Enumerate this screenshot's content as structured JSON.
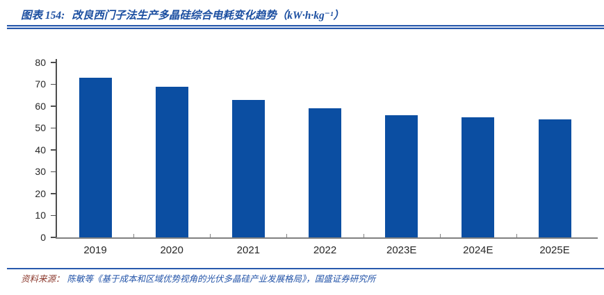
{
  "header": {
    "tag": "图表 154:",
    "title": "改良西门子法生产多晶硅综合电耗变化趋势（kW·h·kg⁻¹）"
  },
  "chart_data": {
    "type": "bar",
    "title": "改良西门子法生产多晶硅综合电耗变化趋势",
    "unit": "kW·h·kg⁻¹",
    "categories": [
      "2019",
      "2020",
      "2021",
      "2022",
      "2023E",
      "2024E",
      "2025E"
    ],
    "values": [
      73,
      69,
      63,
      59,
      56,
      55,
      54
    ],
    "ylim": [
      0,
      80
    ],
    "yticks": [
      0,
      10,
      20,
      30,
      40,
      50,
      60,
      70,
      80
    ],
    "xlabel": "",
    "ylabel": "",
    "grid": false,
    "legend": false,
    "bar_color": "#0B4EA2"
  },
  "footer": {
    "source_label": "资料来源：",
    "source_text": "陈敏等《基于成本和区域优势视角的光伏多晶硅产业发展格局》，国盛证券研究所"
  },
  "colors": {
    "title_blue": "#1C4FA1",
    "rule_blue": "#2859AC",
    "bar_blue": "#0B4EA2",
    "source_label_red": "#8C3A2E",
    "source_text_blue": "#2253A8",
    "axis_gray": "#808080",
    "tick_gray": "#4D4D4D",
    "label_dark": "#262626"
  }
}
